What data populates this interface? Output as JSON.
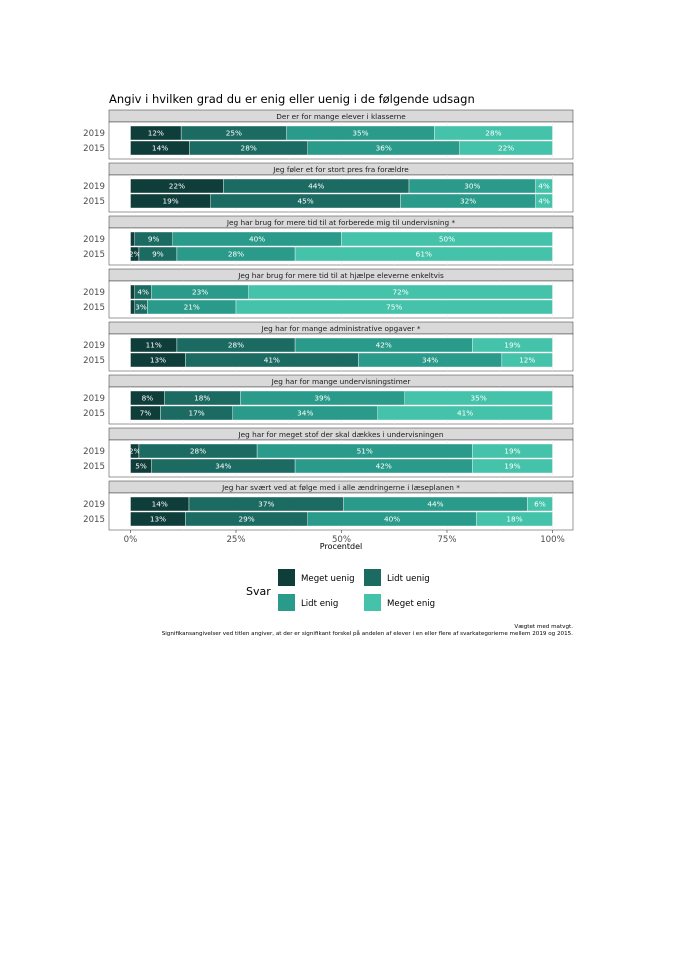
{
  "chart_data": {
    "type": "bar",
    "orientation": "horizontal",
    "stacked": true,
    "title": "Angiv i hvilken grad du er enig eller uenig i de følgende udsagn",
    "xlabel": "Procentdel",
    "ylabel": "",
    "xlim": [
      0,
      100
    ],
    "x_ticks": [
      "0%",
      "25%",
      "50%",
      "75%",
      "100%"
    ],
    "grid": true,
    "legend": {
      "title": "Svar",
      "placement": "bottom",
      "items": [
        "Meget uenig",
        "Lidt uenig",
        "Lidt enig",
        "Meget enig"
      ]
    },
    "colors": {
      "Meget uenig": "#0f3d3a",
      "Lidt uenig": "#1c6b63",
      "Lidt enig": "#2a9a8a",
      "Meget enig": "#45c2aa"
    },
    "panels": [
      {
        "title": "Der er for mange elever i klasserne",
        "rows": [
          {
            "year": "2019",
            "values": [
              12,
              25,
              35,
              28
            ],
            "labels": [
              "12%",
              "25%",
              "35%",
              "28%"
            ]
          },
          {
            "year": "2015",
            "values": [
              14,
              28,
              36,
              22
            ],
            "labels": [
              "14%",
              "28%",
              "36%",
              "22%"
            ]
          }
        ]
      },
      {
        "title": "Jeg føler et for stort pres fra forældre",
        "rows": [
          {
            "year": "2019",
            "values": [
              22,
              44,
              30,
              4
            ],
            "labels": [
              "22%",
              "44%",
              "30%",
              "4%"
            ]
          },
          {
            "year": "2015",
            "values": [
              19,
              45,
              32,
              4
            ],
            "labels": [
              "19%",
              "45%",
              "32%",
              "4%"
            ]
          }
        ]
      },
      {
        "title": "Jeg har brug for mere tid til at forberede mig til undervisning *",
        "rows": [
          {
            "year": "2019",
            "values": [
              1,
              9,
              40,
              50
            ],
            "labels": [
              "",
              "9%",
              "40%",
              "50%"
            ]
          },
          {
            "year": "2015",
            "values": [
              2,
              9,
              28,
              61
            ],
            "labels": [
              "2%",
              "9%",
              "28%",
              "61%"
            ]
          }
        ]
      },
      {
        "title": "Jeg har brug for mere tid til at hjælpe eleverne enkeltvis",
        "rows": [
          {
            "year": "2019",
            "values": [
              1,
              4,
              23,
              72
            ],
            "labels": [
              "",
              "4%",
              "23%",
              "72%"
            ]
          },
          {
            "year": "2015",
            "values": [
              1,
              3,
              21,
              75
            ],
            "labels": [
              "",
              "3%",
              "21%",
              "75%"
            ]
          }
        ]
      },
      {
        "title": "Jeg har for mange administrative opgaver *",
        "rows": [
          {
            "year": "2019",
            "values": [
              11,
              28,
              42,
              19
            ],
            "labels": [
              "11%",
              "28%",
              "42%",
              "19%"
            ]
          },
          {
            "year": "2015",
            "values": [
              13,
              41,
              34,
              12
            ],
            "labels": [
              "13%",
              "41%",
              "34%",
              "12%"
            ]
          }
        ]
      },
      {
        "title": "Jeg har for mange undervisningstimer",
        "rows": [
          {
            "year": "2019",
            "values": [
              8,
              18,
              39,
              35
            ],
            "labels": [
              "8%",
              "18%",
              "39%",
              "35%"
            ]
          },
          {
            "year": "2015",
            "values": [
              7,
              17,
              34,
              41
            ],
            "labels": [
              "7%",
              "17%",
              "34%",
              "41%"
            ]
          }
        ]
      },
      {
        "title": "Jeg har for meget stof der skal dækkes i undervisningen",
        "rows": [
          {
            "year": "2019",
            "values": [
              2,
              28,
              51,
              19
            ],
            "labels": [
              "2%",
              "28%",
              "51%",
              "19%"
            ]
          },
          {
            "year": "2015",
            "values": [
              5,
              34,
              42,
              19
            ],
            "labels": [
              "5%",
              "34%",
              "42%",
              "19%"
            ]
          }
        ]
      },
      {
        "title": "Jeg har svært ved at følge med i alle ændringerne i læseplanen *",
        "rows": [
          {
            "year": "2019",
            "values": [
              14,
              37,
              44,
              6
            ],
            "labels": [
              "14%",
              "37%",
              "44%",
              "6%"
            ]
          },
          {
            "year": "2015",
            "values": [
              13,
              29,
              40,
              18
            ],
            "labels": [
              "13%",
              "29%",
              "40%",
              "18%"
            ]
          }
        ]
      }
    ]
  },
  "notes": {
    "weight": "Vægtet med matvgt.",
    "significance": "Signifikansangivelser ved titlen angiver, at der er signifikant forskel på andelen af elever i en eller flere af svarkategorierne mellem 2019 og 2015."
  }
}
